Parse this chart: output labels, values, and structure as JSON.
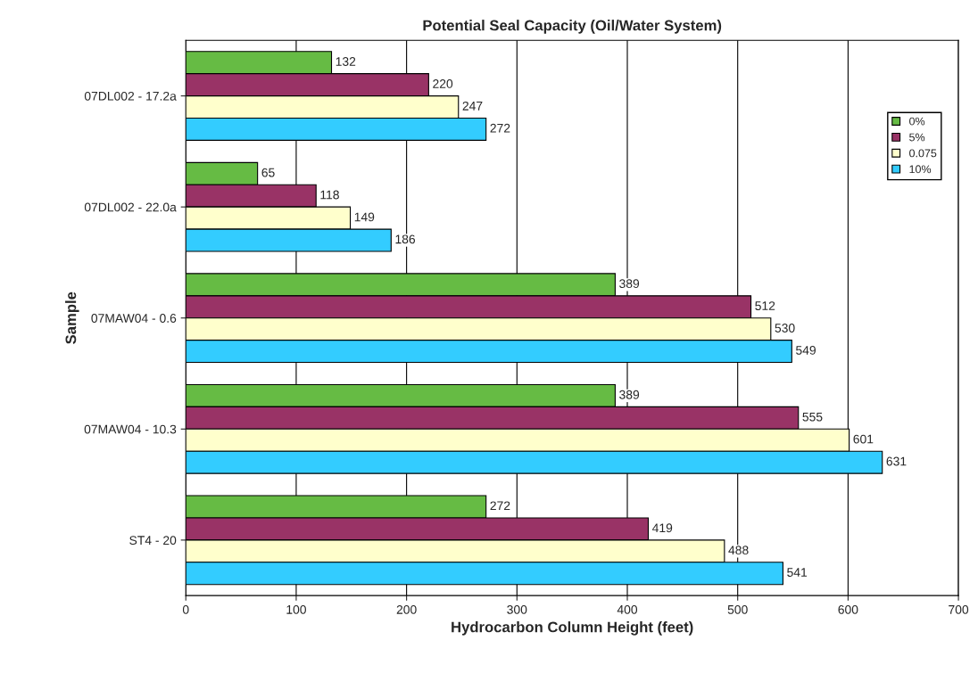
{
  "chart_data": {
    "type": "bar",
    "orientation": "horizontal",
    "title": "Potential Seal Capacity (Oil/Water System)",
    "xlabel": "Hydrocarbon Column Height (feet)",
    "ylabel": "Sample",
    "categories": [
      "07DL002 - 17.2a",
      "07DL002 - 22.0a",
      "07MAW04 - 0.6",
      "07MAW04 - 10.3",
      "ST4 - 20"
    ],
    "series": [
      {
        "name": "0%",
        "color": "#66bb44",
        "values": [
          132,
          65,
          389,
          389,
          272
        ]
      },
      {
        "name": "5%",
        "color": "#993366",
        "values": [
          220,
          118,
          512,
          555,
          419
        ]
      },
      {
        "name": "0.075",
        "color": "#ffffcc",
        "values": [
          247,
          149,
          530,
          601,
          488
        ]
      },
      {
        "name": "10%",
        "color": "#33ccff",
        "values": [
          272,
          186,
          549,
          631,
          541
        ]
      }
    ],
    "xlim": [
      0,
      700
    ],
    "xticks": [
      0,
      100,
      200,
      300,
      400,
      500,
      600,
      700
    ],
    "grid": "x",
    "legend": "top right",
    "data_labels": true
  }
}
